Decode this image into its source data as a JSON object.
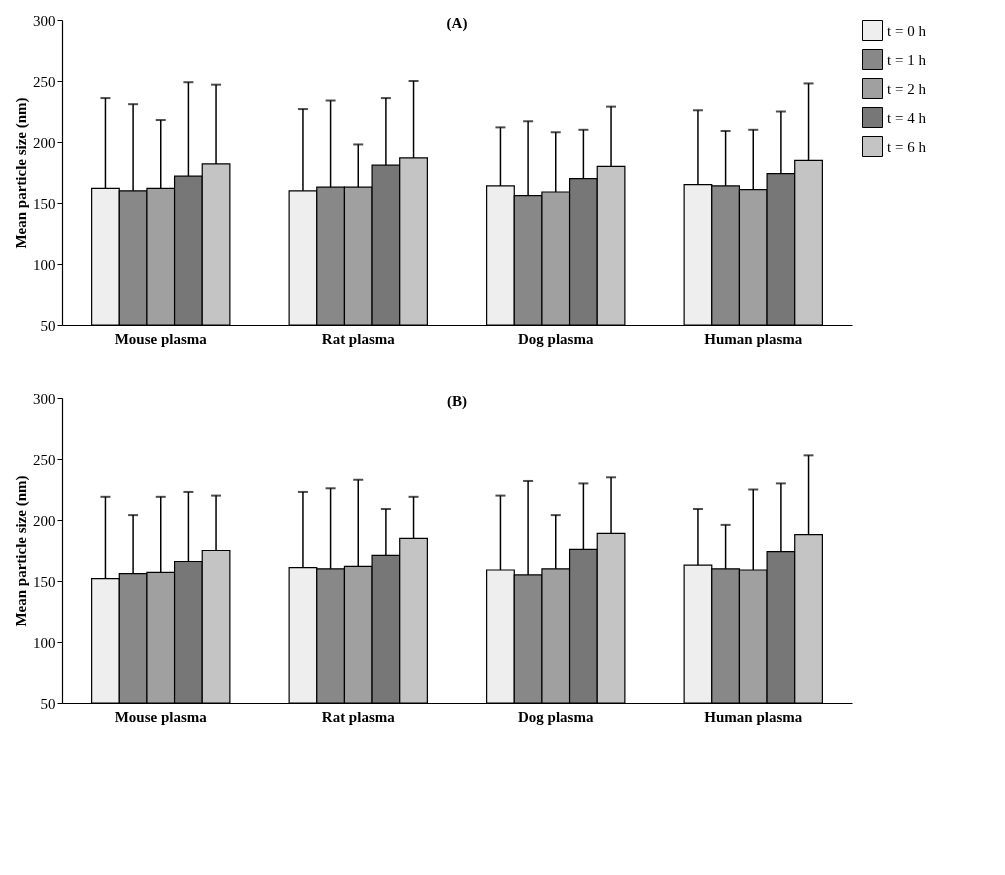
{
  "chart_data": [
    {
      "type": "bar",
      "title": "(A)",
      "ylabel": "Mean particle size (nm)",
      "categories": [
        "Mouse plasma",
        "Rat plasma",
        "Dog plasma",
        "Human plasma"
      ],
      "ylim": [
        50,
        300
      ],
      "yticks": [
        50,
        100,
        150,
        200,
        250,
        300
      ],
      "legend": "top right",
      "grid": false,
      "series": [
        {
          "name": "t = 0 h",
          "color": "#eeeeee",
          "values": [
            162,
            160,
            164,
            165
          ],
          "errors": [
            [
              162,
              236
            ],
            [
              160,
              227
            ],
            [
              164,
              212
            ],
            [
              165,
              226
            ]
          ]
        },
        {
          "name": "t = 1 h",
          "color": "#888888",
          "values": [
            160,
            163,
            156,
            164
          ],
          "errors": [
            [
              160,
              231
            ],
            [
              163,
              234
            ],
            [
              156,
              217
            ],
            [
              164,
              209
            ]
          ]
        },
        {
          "name": "t = 2 h",
          "color": "#a0a0a0",
          "values": [
            162,
            163,
            159,
            161
          ],
          "errors": [
            [
              162,
              218
            ],
            [
              163,
              198
            ],
            [
              159,
              208
            ],
            [
              161,
              210
            ]
          ]
        },
        {
          "name": "t = 4 h",
          "color": "#777777",
          "values": [
            172,
            181,
            170,
            174
          ],
          "errors": [
            [
              172,
              249
            ],
            [
              181,
              236
            ],
            [
              170,
              210
            ],
            [
              174,
              225
            ]
          ]
        },
        {
          "name": "t = 6 h",
          "color": "#c4c4c4",
          "values": [
            182,
            187,
            180,
            185
          ],
          "errors": [
            [
              182,
              247
            ],
            [
              187,
              250
            ],
            [
              180,
              229
            ],
            [
              185,
              248
            ]
          ]
        }
      ]
    },
    {
      "type": "bar",
      "title": "(B)",
      "ylabel": "Mean particle size (nm)",
      "categories": [
        "Mouse plasma",
        "Rat plasma",
        "Dog plasma",
        "Human plasma"
      ],
      "ylim": [
        50,
        300
      ],
      "yticks": [
        50,
        100,
        150,
        200,
        250,
        300
      ],
      "legend": "top right",
      "grid": false,
      "series": [
        {
          "name": "t = 0 h",
          "color": "#eeeeee",
          "values": [
            152,
            161,
            159,
            163
          ],
          "errors": [
            [
              152,
              219
            ],
            [
              161,
              223
            ],
            [
              159,
              220
            ],
            [
              163,
              209
            ]
          ]
        },
        {
          "name": "t = 1 h",
          "color": "#888888",
          "values": [
            156,
            160,
            155,
            160
          ],
          "errors": [
            [
              156,
              204
            ],
            [
              160,
              226
            ],
            [
              155,
              232
            ],
            [
              160,
              196
            ]
          ]
        },
        {
          "name": "t = 2 h",
          "color": "#a0a0a0",
          "values": [
            157,
            162,
            160,
            159
          ],
          "errors": [
            [
              157,
              219
            ],
            [
              162,
              233
            ],
            [
              160,
              204
            ],
            [
              159,
              225
            ]
          ]
        },
        {
          "name": "t = 4 h",
          "color": "#777777",
          "values": [
            166,
            171,
            176,
            174
          ],
          "errors": [
            [
              166,
              223
            ],
            [
              171,
              209
            ],
            [
              176,
              230
            ],
            [
              174,
              230
            ]
          ]
        },
        {
          "name": "t = 6 h",
          "color": "#c4c4c4",
          "values": [
            175,
            185,
            189,
            188
          ],
          "errors": [
            [
              175,
              220
            ],
            [
              185,
              219
            ],
            [
              189,
              235
            ],
            [
              188,
              253
            ]
          ]
        }
      ]
    }
  ]
}
